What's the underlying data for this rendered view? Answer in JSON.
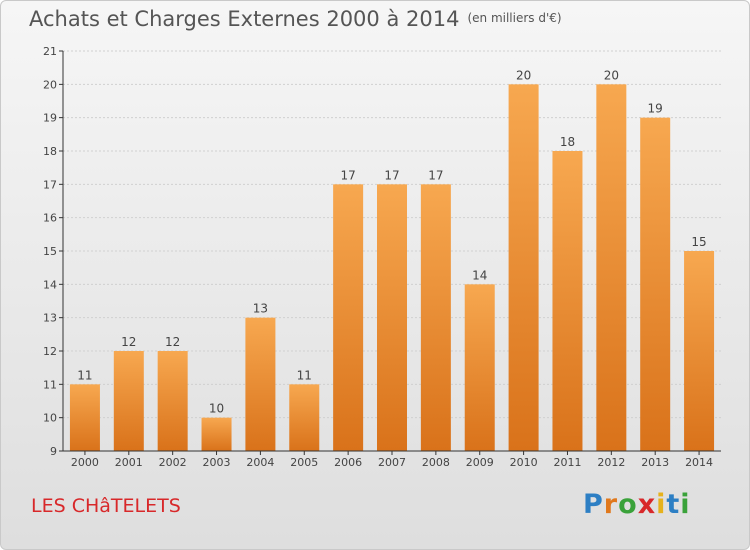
{
  "header": {
    "title": "Achats et Charges Externes 2000 à 2014",
    "unit": "(en milliers d'€)"
  },
  "footer": {
    "town": "LES CHâTELETS",
    "logo_letters": [
      "P",
      "r",
      "o",
      "x",
      "i",
      "t",
      "i"
    ]
  },
  "colors": {
    "bar_light": "#f7a850",
    "bar_dark": "#d9721a",
    "town_text": "#d8282a",
    "axis": "#333333",
    "grid": "#d0d0d0"
  },
  "chart_data": {
    "type": "bar",
    "title": "Achats et Charges Externes 2000 à 2014",
    "subtitle": "(en milliers d'€)",
    "xlabel": "",
    "ylabel": "",
    "categories": [
      "2000",
      "2001",
      "2002",
      "2003",
      "2004",
      "2005",
      "2006",
      "2007",
      "2008",
      "2009",
      "2010",
      "2011",
      "2012",
      "2013",
      "2014"
    ],
    "values": [
      11,
      12,
      12,
      10,
      13,
      11,
      17,
      17,
      17,
      14,
      20,
      18,
      20,
      19,
      15
    ],
    "ylim": [
      9,
      21
    ],
    "yticks": [
      9,
      10,
      11,
      12,
      13,
      14,
      15,
      16,
      17,
      18,
      19,
      20,
      21
    ],
    "grid": true,
    "legend": "none"
  }
}
